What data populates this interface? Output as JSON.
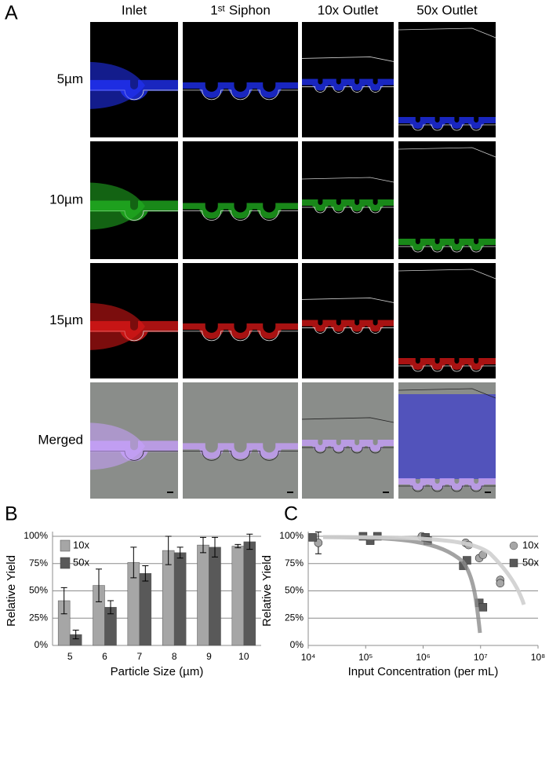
{
  "panel_a": {
    "label": "A",
    "columns": [
      "Inlet",
      "1ˢᵗ Siphon",
      "10x Outlet",
      "50x Outlet"
    ],
    "rows": [
      "5µm",
      "10µm",
      "15µm",
      "Merged"
    ]
  },
  "chart_data": [
    {
      "type": "bar",
      "panel_label": "B",
      "x_label": "Particle Size (µm)",
      "y_label": "Relative Yield",
      "categories": [
        "5",
        "6",
        "7",
        "8",
        "9",
        "10"
      ],
      "series": [
        {
          "name": "10x",
          "color": "#a6a6a6",
          "values": [
            41,
            55,
            76,
            87,
            92,
            91
          ],
          "errors": [
            12,
            15,
            14,
            13,
            7,
            1.5
          ]
        },
        {
          "name": "50x",
          "color": "#595959",
          "values": [
            10,
            35,
            66,
            85,
            90,
            95
          ],
          "errors": [
            4,
            6,
            7,
            5,
            9,
            7
          ]
        }
      ],
      "ylim": [
        0,
        100
      ],
      "yticks": [
        {
          "value": 0,
          "label": "0%"
        },
        {
          "value": 25,
          "label": "25%"
        },
        {
          "value": 50,
          "label": "50%"
        },
        {
          "value": 75,
          "label": "75%"
        },
        {
          "value": 100,
          "label": "100%"
        }
      ],
      "grid": true,
      "legend": "top-left"
    },
    {
      "type": "scatter",
      "panel_label": "C",
      "x_label": "Input Concentration (per mL)",
      "y_label": "Relative Yield",
      "xscale": "log",
      "xlim": [
        10000,
        100000000
      ],
      "xticks": [
        {
          "value": 10000,
          "label": "10⁴"
        },
        {
          "value": 100000,
          "label": "10⁵"
        },
        {
          "value": 1000000,
          "label": "10⁶"
        },
        {
          "value": 10000000,
          "label": "10⁷"
        },
        {
          "value": 100000000,
          "label": "10⁸"
        }
      ],
      "ylim": [
        0,
        100
      ],
      "yticks": [
        {
          "value": 0,
          "label": "0%"
        },
        {
          "value": 25,
          "label": "25%"
        },
        {
          "value": 50,
          "label": "50%"
        },
        {
          "value": 75,
          "label": "75%"
        },
        {
          "value": 100,
          "label": "100%"
        }
      ],
      "grid": true,
      "legend": "top-right",
      "series": [
        {
          "name": "10x",
          "color": "#a6a6a6",
          "marker": "circle",
          "x": [
            15000,
            950000,
            1100000,
            1200000,
            5500000,
            6200000,
            9500000,
            11000000,
            22000000,
            22000000
          ],
          "values": [
            94,
            100,
            99,
            96,
            94,
            92,
            80,
            83,
            60,
            57
          ],
          "errors": [
            10,
            null,
            null,
            null,
            null,
            null,
            null,
            null,
            null,
            null
          ]
        },
        {
          "name": "50x",
          "color": "#595959",
          "marker": "square",
          "x": [
            12000,
            90000,
            120000,
            160000,
            1100000,
            1200000,
            5000000,
            5800000,
            9500000,
            11000000
          ],
          "values": [
            99,
            100,
            96,
            100,
            99,
            96,
            73,
            78,
            39,
            35
          ]
        }
      ]
    }
  ]
}
